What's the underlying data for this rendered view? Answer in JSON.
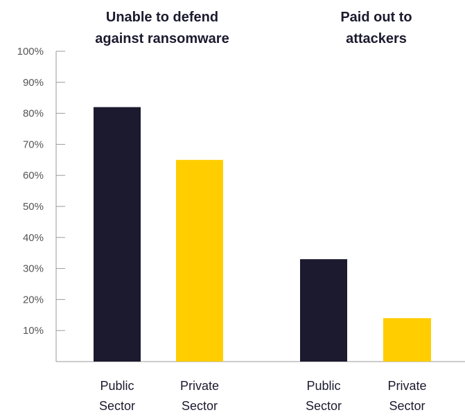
{
  "chart_data": {
    "type": "bar",
    "groups": [
      {
        "title_lines": [
          "Unable to defend",
          "against ransomware"
        ],
        "bars": [
          {
            "category_lines": [
              "Public",
              "Sector"
            ],
            "value": 82,
            "color": "#1b1a2e"
          },
          {
            "category_lines": [
              "Private",
              "Sector"
            ],
            "value": 65,
            "color": "#ffcd00"
          }
        ]
      },
      {
        "title_lines": [
          "Paid out to",
          "attackers"
        ],
        "bars": [
          {
            "category_lines": [
              "Public",
              "Sector"
            ],
            "value": 33,
            "color": "#1b1a2e"
          },
          {
            "category_lines": [
              "Private",
              "Sector"
            ],
            "value": 14,
            "color": "#ffcd00"
          }
        ]
      }
    ],
    "y_ticks": [
      "10%",
      "20%",
      "30%",
      "40%",
      "50%",
      "60%",
      "70%",
      "80%",
      "90%",
      "100%"
    ],
    "y_tick_values": [
      10,
      20,
      30,
      40,
      50,
      60,
      70,
      80,
      90,
      100
    ],
    "ylim": [
      0,
      100
    ],
    "colors": {
      "public": "#1b1a2e",
      "private": "#ffcd00",
      "axis": "#9a9a9a",
      "tick_text": "#555555",
      "title_text": "#1b1a2e"
    }
  }
}
